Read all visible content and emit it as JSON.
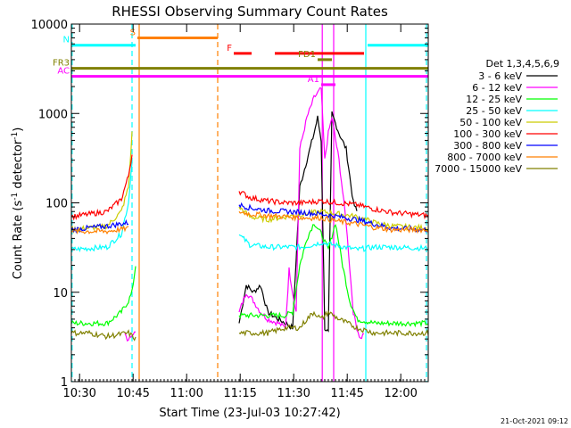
{
  "chart_data": {
    "type": "line",
    "title": "RHESSI Observing Summary Count Rates",
    "xlabel": "Start Time (23-Jul-03 10:27:42)",
    "ylabel_main": "Count Rate (s",
    "ylabel_sup1": "-1",
    "ylabel_mid": " detector",
    "ylabel_sup2": "-1",
    "ylabel_end": ")",
    "footer": "21-Oct-2021 09:12",
    "y_scale": "log",
    "ylim": [
      1,
      10000
    ],
    "xlim_minutes": [
      0,
      100
    ],
    "x_ticks": [
      {
        "label": "10:30",
        "min": 2.3
      },
      {
        "label": "10:45",
        "min": 17.3
      },
      {
        "label": "11:00",
        "min": 32.3
      },
      {
        "label": "11:15",
        "min": 47.3
      },
      {
        "label": "11:30",
        "min": 62.3
      },
      {
        "label": "11:45",
        "min": 77.3
      },
      {
        "label": "12:00",
        "min": 92.3
      }
    ],
    "y_ticks": [
      {
        "label": "1",
        "value": 1
      },
      {
        "label": "10",
        "value": 10
      },
      {
        "label": "100",
        "value": 100
      },
      {
        "label": "1000",
        "value": 1000
      },
      {
        "label": "10000",
        "value": 10000
      }
    ],
    "legend_title": "Det 1,3,4,5,6,9",
    "legend_placement": "right",
    "series": [
      {
        "name": "3 - 6 keV",
        "color": "#000000",
        "points": [
          [
            47,
            4.5
          ],
          [
            49,
            12
          ],
          [
            51,
            10
          ],
          [
            53,
            12
          ],
          [
            55,
            6
          ],
          [
            58,
            5
          ],
          [
            60,
            4.5
          ],
          [
            62,
            4
          ],
          [
            64,
            150
          ],
          [
            66,
            300
          ],
          [
            68,
            600
          ],
          [
            69,
            900
          ],
          [
            70,
            500
          ],
          [
            71,
            4
          ],
          [
            72,
            3.5
          ],
          [
            73,
            1000
          ],
          [
            75,
            600
          ],
          [
            77,
            400
          ],
          [
            79,
            100
          ],
          [
            80,
            80
          ]
        ]
      },
      {
        "name": "6 - 12 keV",
        "color": "#ff00ff",
        "points": [
          [
            15,
            3.5
          ],
          [
            16,
            2.8
          ],
          [
            17,
            3.5
          ],
          [
            18,
            3.5
          ],
          [
            47,
            6
          ],
          [
            49,
            10
          ],
          [
            51,
            8
          ],
          [
            53,
            6
          ],
          [
            55,
            5
          ],
          [
            58,
            4.5
          ],
          [
            60,
            4
          ],
          [
            61,
            18
          ],
          [
            62,
            10
          ],
          [
            63,
            6
          ],
          [
            64,
            400
          ],
          [
            66,
            900
          ],
          [
            68,
            1500
          ],
          [
            70,
            1900
          ],
          [
            71,
            300
          ],
          [
            72,
            600
          ],
          [
            73,
            900
          ],
          [
            75,
            300
          ],
          [
            77,
            60
          ],
          [
            79,
            6
          ],
          [
            80,
            4
          ],
          [
            81,
            3
          ],
          [
            82,
            3.5
          ]
        ]
      },
      {
        "name": "12 - 25 keV",
        "color": "#00ff00",
        "points": [
          [
            0,
            4.5
          ],
          [
            10,
            4.5
          ],
          [
            14,
            6
          ],
          [
            16,
            8
          ],
          [
            17,
            10
          ],
          [
            18,
            20
          ],
          [
            47,
            5.5
          ],
          [
            50,
            5.5
          ],
          [
            55,
            5.5
          ],
          [
            60,
            5.5
          ],
          [
            62,
            6
          ],
          [
            64,
            20
          ],
          [
            66,
            40
          ],
          [
            68,
            60
          ],
          [
            70,
            45
          ],
          [
            72,
            30
          ],
          [
            74,
            60
          ],
          [
            76,
            20
          ],
          [
            78,
            8
          ],
          [
            80,
            5
          ],
          [
            85,
            4.5
          ],
          [
            100,
            4.5
          ]
        ]
      },
      {
        "name": "25 - 50 keV",
        "color": "#00ffff",
        "points": [
          [
            0,
            30
          ],
          [
            10,
            32
          ],
          [
            14,
            45
          ],
          [
            16,
            100
          ],
          [
            17,
            300
          ],
          [
            47,
            44
          ],
          [
            50,
            34
          ],
          [
            55,
            32
          ],
          [
            60,
            32
          ],
          [
            65,
            32
          ],
          [
            70,
            36
          ],
          [
            75,
            33
          ],
          [
            80,
            30
          ],
          [
            85,
            32
          ],
          [
            90,
            32
          ],
          [
            100,
            31
          ]
        ]
      },
      {
        "name": "50 - 100 keV",
        "color": "#cccc00",
        "points": [
          [
            0,
            50
          ],
          [
            10,
            55
          ],
          [
            14,
            80
          ],
          [
            16,
            150
          ],
          [
            17,
            600
          ],
          [
            47,
            90
          ],
          [
            50,
            70
          ],
          [
            55,
            65
          ],
          [
            60,
            70
          ],
          [
            65,
            75
          ],
          [
            70,
            80
          ],
          [
            75,
            75
          ],
          [
            80,
            70
          ],
          [
            85,
            60
          ],
          [
            90,
            55
          ],
          [
            100,
            52
          ]
        ]
      },
      {
        "name": "100 - 300 keV",
        "color": "#ff0000",
        "points": [
          [
            0,
            70
          ],
          [
            10,
            80
          ],
          [
            14,
            110
          ],
          [
            16,
            200
          ],
          [
            17,
            350
          ],
          [
            47,
            135
          ],
          [
            50,
            115
          ],
          [
            55,
            105
          ],
          [
            60,
            100
          ],
          [
            65,
            100
          ],
          [
            70,
            105
          ],
          [
            75,
            100
          ],
          [
            80,
            95
          ],
          [
            85,
            85
          ],
          [
            90,
            78
          ],
          [
            100,
            72
          ]
        ]
      },
      {
        "name": "300 - 800 keV",
        "color": "#0000ff",
        "points": [
          [
            0,
            50
          ],
          [
            10,
            55
          ],
          [
            16,
            60
          ],
          [
            47,
            95
          ],
          [
            50,
            88
          ],
          [
            55,
            82
          ],
          [
            60,
            80
          ],
          [
            65,
            78
          ],
          [
            70,
            75
          ],
          [
            75,
            70
          ],
          [
            80,
            65
          ],
          [
            85,
            58
          ],
          [
            90,
            52
          ],
          [
            100,
            50
          ]
        ]
      },
      {
        "name": "800 - 7000 keV",
        "color": "#ff8000",
        "points": [
          [
            0,
            48
          ],
          [
            10,
            48
          ],
          [
            16,
            52
          ],
          [
            47,
            80
          ],
          [
            50,
            75
          ],
          [
            55,
            72
          ],
          [
            60,
            70
          ],
          [
            65,
            68
          ],
          [
            70,
            68
          ],
          [
            75,
            62
          ],
          [
            80,
            58
          ],
          [
            85,
            53
          ],
          [
            90,
            50
          ],
          [
            100,
            50
          ]
        ]
      },
      {
        "name": "7000 - 15000 keV",
        "color": "#808000",
        "points": [
          [
            0,
            3.5
          ],
          [
            5,
            3.5
          ],
          [
            10,
            3.2
          ],
          [
            16,
            3.5
          ],
          [
            18,
            3
          ],
          [
            47,
            3.5
          ],
          [
            55,
            3.5
          ],
          [
            60,
            4
          ],
          [
            64,
            4
          ],
          [
            66,
            5
          ],
          [
            68,
            6
          ],
          [
            70,
            5
          ],
          [
            72,
            6
          ],
          [
            75,
            5
          ],
          [
            80,
            4
          ],
          [
            85,
            3.5
          ],
          [
            90,
            3.5
          ],
          [
            100,
            3.5
          ]
        ]
      }
    ],
    "flag_bars": [
      {
        "label": "S",
        "color": "#ff8000",
        "x0": 18.5,
        "x1": 41,
        "level": 7000
      },
      {
        "label": "N",
        "color": "#00ffff",
        "x0": 0,
        "x1": 18,
        "level": 5800
      },
      {
        "label": "",
        "color": "#00ffff",
        "x0": 83,
        "x1": 100,
        "level": 5800
      },
      {
        "label": "F",
        "color": "#ff0000",
        "x0": 45.5,
        "x1": 50.5,
        "level": 4700
      },
      {
        "label": "",
        "color": "#ff0000",
        "x0": 57,
        "x1": 82,
        "level": 4700
      },
      {
        "label": "FD1",
        "color": "#808000",
        "x0": 69,
        "x1": 73,
        "level": 4000
      },
      {
        "label": "FR3",
        "color": "#808000",
        "x0": 0,
        "x1": 100,
        "level": 3200
      },
      {
        "label": "AC",
        "color": "#ff00ff",
        "x0": 0,
        "x1": 100,
        "level": 2600
      },
      {
        "label": "A1",
        "color": "#ff00ff",
        "x0": 70,
        "x1": 74,
        "level": 2100
      }
    ],
    "vlines": [
      {
        "color": "#00ffff",
        "style": "dashed",
        "min": 0.2
      },
      {
        "color": "#00ffff",
        "style": "dashed",
        "min": 17
      },
      {
        "color": "#ff8000",
        "style": "solid",
        "min": 19
      },
      {
        "color": "#ff8000",
        "style": "dashed",
        "min": 41
      },
      {
        "color": "#ff00ff",
        "style": "solid",
        "min": 70.3
      },
      {
        "color": "#ff00ff",
        "style": "solid",
        "min": 73.5
      },
      {
        "color": "#00ffff",
        "style": "solid",
        "min": 82.5
      },
      {
        "color": "#00ffff",
        "style": "dashed",
        "min": 99.5
      }
    ]
  }
}
